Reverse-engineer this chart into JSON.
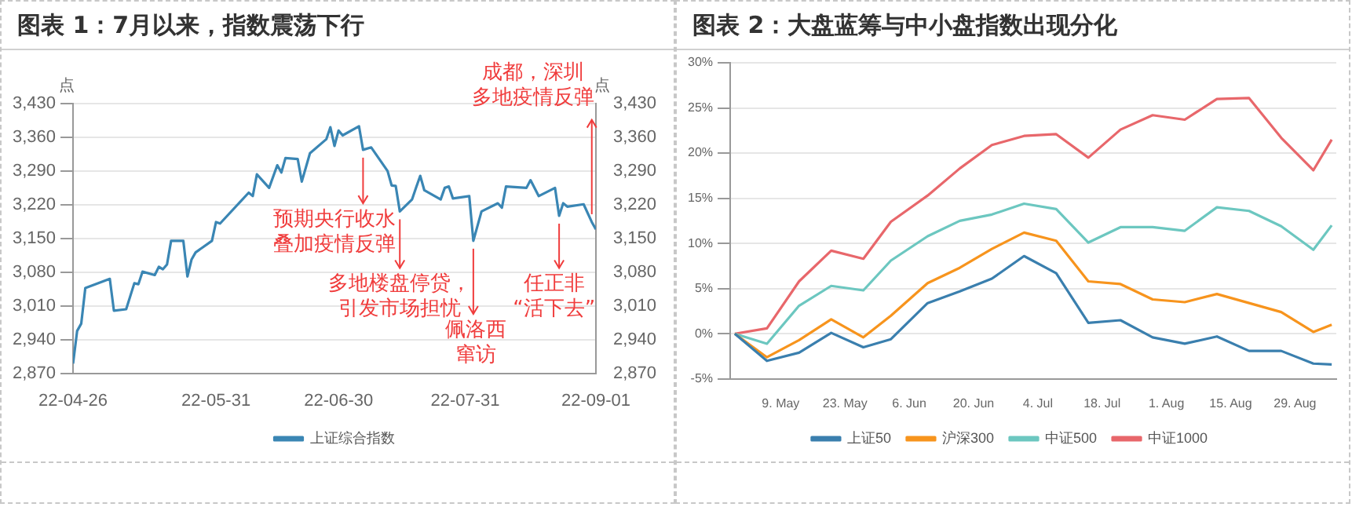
{
  "chart_data": [
    {
      "type": "line",
      "title": "图表 1：7月以来，指数震荡下行",
      "ylabel": "点",
      "y2label": "点",
      "legend": "bottom",
      "grid": "y",
      "x": [
        "--04-26",
        "--04-27",
        "--04-28",
        "--04-29",
        "--05-05",
        "--05-06",
        "--05-09",
        "--05-11",
        "--05-12",
        "--05-13",
        "--05-16",
        "--05-17",
        "--05-18",
        "--05-19",
        "--05-20",
        "--05-23",
        "--05-24",
        "--05-25",
        "--05-26",
        "--05-30",
        "--05-31",
        "--06-01",
        "--06-08",
        "--06-09",
        "--06-10",
        "--06-13",
        "--06-15",
        "--06-16",
        "--06-17",
        "--06-20",
        "--06-21",
        "--06-23",
        "--06-27",
        "--06-28",
        "--06-29",
        "--06-30",
        "--07-01",
        "--07-05",
        "--07-06",
        "--07-08",
        "--07-12",
        "--07-13",
        "--07-14",
        "--07-15",
        "--07-18",
        "--07-19",
        "--07-20",
        "--07-21",
        "--07-25",
        "--07-26",
        "--07-27",
        "--07-28",
        "--08-01",
        "--08-02",
        "--08-04",
        "--08-08",
        "--08-09",
        "--08-10",
        "--08-15",
        "--08-16",
        "--08-18",
        "--08-22",
        "--08-23",
        "--08-24",
        "--08-25",
        "--08-29",
        "--08-31",
        "--09-01"
      ],
      "series": [
        {
          "name": "上证综合指数",
          "color": "#3a86b4",
          "values": [
            2890,
            2958,
            2973,
            3047,
            3066,
            3000,
            3003,
            3057,
            3055,
            3081,
            3074,
            3091,
            3086,
            3096,
            3145,
            3145,
            3071,
            3106,
            3121,
            3145,
            3184,
            3181,
            3245,
            3238,
            3283,
            3255,
            3302,
            3287,
            3317,
            3315,
            3268,
            3327,
            3356,
            3381,
            3342,
            3374,
            3364,
            3383,
            3334,
            3339,
            3290,
            3260,
            3259,
            3206,
            3231,
            3256,
            3280,
            3250,
            3231,
            3255,
            3258,
            3233,
            3238,
            3145,
            3206,
            3223,
            3214,
            3258,
            3255,
            3271,
            3238,
            3255,
            3197,
            3223,
            3216,
            3221,
            3184,
            3169
          ]
        }
      ],
      "xlim": [
        "--04-26",
        "--09-01"
      ],
      "xticks": [
        {
          "value": "--04-26",
          "label": "22-04-26"
        },
        {
          "value": "--05-31",
          "label": "22-05-31"
        },
        {
          "value": "--06-30",
          "label": "22-06-30"
        },
        {
          "value": "--07-31",
          "label": "22-07-31"
        },
        {
          "value": "--09-01",
          "label": "22-09-01"
        }
      ],
      "ylim": [
        2870,
        3430
      ],
      "yticks": [
        {
          "value": 2870,
          "label": "2,870"
        },
        {
          "value": 2940,
          "label": "2,940"
        },
        {
          "value": 3010,
          "label": "3,010"
        },
        {
          "value": 3080,
          "label": "3,080"
        },
        {
          "value": 3150,
          "label": "3,150"
        },
        {
          "value": 3220,
          "label": "3,220"
        },
        {
          "value": 3290,
          "label": "3,290"
        },
        {
          "value": 3360,
          "label": "3,360"
        },
        {
          "value": 3430,
          "label": "3,430"
        }
      ],
      "y2lim": [
        2870,
        3430
      ],
      "y2ticks": [
        {
          "value": 2870,
          "label": "2,870"
        },
        {
          "value": 2940,
          "label": "2,940"
        },
        {
          "value": 3010,
          "label": "3,010"
        },
        {
          "value": 3080,
          "label": "3,080"
        },
        {
          "value": 3150,
          "label": "3,150"
        },
        {
          "value": 3220,
          "label": "3,220"
        },
        {
          "value": 3290,
          "label": "3,290"
        },
        {
          "value": 3360,
          "label": "3,360"
        },
        {
          "value": 3430,
          "label": "3,430"
        }
      ],
      "annotations": [
        {
          "text": "预期央行收水叠加疫情反弹",
          "x": "--07-06",
          "y": 3334
        },
        {
          "text": "多地楼盘停贷，引发市场担忧",
          "x": "--07-15",
          "y": 3206
        },
        {
          "text": "佩洛西窜访",
          "x": "--08-02",
          "y": 3145
        },
        {
          "text": "任正非“活下去”",
          "x": "--08-23",
          "y": 3197
        },
        {
          "text": "成都，深圳多地疫情反弹",
          "x": "--08-31",
          "y": 3184
        }
      ]
    },
    {
      "type": "line",
      "title": "图表 2：大盘蓝筹与中小盘指数出现分化",
      "legend": "bottom",
      "grid": "y",
      "x": [
        "--04-29",
        "--05-06",
        "--05-13",
        "--05-20",
        "--05-27",
        "--06-02",
        "--06-10",
        "--06-17",
        "--06-24",
        "--07-01",
        "--07-08",
        "--07-15",
        "--07-22",
        "--07-29",
        "--08-05",
        "--08-12",
        "--08-19",
        "--08-26",
        "--09-02",
        "--09-06"
      ],
      "series": [
        {
          "name": "上证50",
          "color": "#3a7fae",
          "values": [
            0,
            -3.0,
            -2.1,
            0.1,
            -1.5,
            -0.6,
            3.4,
            4.7,
            6.1,
            8.6,
            6.7,
            1.2,
            1.5,
            -0.4,
            -1.1,
            -0.3,
            -1.9,
            -1.9,
            -3.3,
            -3.4
          ]
        },
        {
          "name": "沪深300",
          "color": "#f7941d",
          "values": [
            0,
            -2.6,
            -0.7,
            1.6,
            -0.4,
            2.0,
            5.6,
            7.3,
            9.4,
            11.2,
            10.3,
            5.8,
            5.5,
            3.8,
            3.5,
            4.4,
            3.4,
            2.4,
            0.2,
            1.0
          ]
        },
        {
          "name": "中证500",
          "color": "#6cc7c0",
          "values": [
            0,
            -1.1,
            3.1,
            5.3,
            4.8,
            8.1,
            10.8,
            12.5,
            13.2,
            14.4,
            13.8,
            10.1,
            11.8,
            11.8,
            11.4,
            14.0,
            13.6,
            11.9,
            9.3,
            12.0
          ]
        },
        {
          "name": "中证1000",
          "color": "#e8676b",
          "values": [
            0,
            0.6,
            5.8,
            9.2,
            8.3,
            12.4,
            15.3,
            18.3,
            20.9,
            21.9,
            22.1,
            19.5,
            22.6,
            24.2,
            23.7,
            26.0,
            26.1,
            21.7,
            18.1,
            21.5
          ]
        }
      ],
      "xlim": [
        "--04-28",
        "--09-07"
      ],
      "xticks": [
        {
          "value": "--05-09",
          "label": "9. May"
        },
        {
          "value": "--05-23",
          "label": "23. May"
        },
        {
          "value": "--06-06",
          "label": "6. Jun"
        },
        {
          "value": "--06-20",
          "label": "20. Jun"
        },
        {
          "value": "--07-04",
          "label": "4. Jul"
        },
        {
          "value": "--07-18",
          "label": "18. Jul"
        },
        {
          "value": "--08-01",
          "label": "1. Aug"
        },
        {
          "value": "--08-15",
          "label": "15. Aug"
        },
        {
          "value": "--08-29",
          "label": "29. Aug"
        }
      ],
      "ylim": [
        -5,
        30
      ],
      "yticks": [
        {
          "value": -5,
          "label": "-5%"
        },
        {
          "value": 0,
          "label": "0%"
        },
        {
          "value": 5,
          "label": "5%"
        },
        {
          "value": 10,
          "label": "10%"
        },
        {
          "value": 15,
          "label": "15%"
        },
        {
          "value": 20,
          "label": "20%"
        },
        {
          "value": 25,
          "label": "25%"
        },
        {
          "value": 30,
          "label": "30%"
        }
      ]
    }
  ]
}
